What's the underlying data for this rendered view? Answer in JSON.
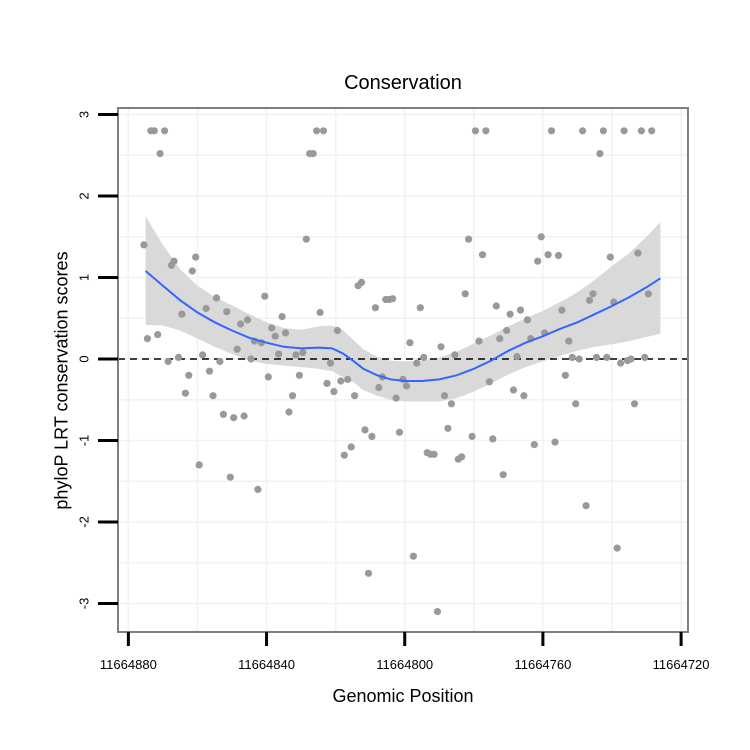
{
  "chart_data": {
    "type": "scatter",
    "title": "Conservation",
    "xlabel": "Genomic Position",
    "ylabel": "phyloP LRT conservation scores",
    "x_reversed": true,
    "xlim": [
      11664883,
      11664718
    ],
    "ylim": [
      -3.35,
      3.08
    ],
    "x_ticks": [
      11664880,
      11664840,
      11664800,
      11664760,
      11664720
    ],
    "x_tick_labels": [
      "11664880",
      "11664840",
      "11664800",
      "11664760",
      "11664720"
    ],
    "y_ticks": [
      -3,
      -2,
      -1,
      0,
      1,
      2,
      3
    ],
    "y_tick_labels": [
      "-3",
      "-2",
      "-1",
      "0",
      "1",
      "2",
      "3"
    ],
    "grid": true,
    "reference_line": {
      "y": 0,
      "style": "dashed"
    },
    "colors": {
      "points": "#999999",
      "smooth": "#3366ff",
      "ribbon": "#d9d9d9",
      "grid": "#f2f2f2",
      "border": "#7f7f7f"
    },
    "points": [
      [
        11664875.5,
        1.4
      ],
      [
        11664874.5,
        0.25
      ],
      [
        11664873.5,
        2.8
      ],
      [
        11664872.5,
        2.8
      ],
      [
        11664871.5,
        0.3
      ],
      [
        11664870.8,
        2.52
      ],
      [
        11664869.5,
        2.8
      ],
      [
        11664868.5,
        -0.03
      ],
      [
        11664867.5,
        1.15
      ],
      [
        11664866.8,
        1.2
      ],
      [
        11664865.5,
        0.02
      ],
      [
        11664864.5,
        0.55
      ],
      [
        11664863.5,
        -0.42
      ],
      [
        11664862.5,
        -0.2
      ],
      [
        11664861.5,
        1.08
      ],
      [
        11664860.5,
        1.25
      ],
      [
        11664859.5,
        -1.3
      ],
      [
        11664858.5,
        0.05
      ],
      [
        11664857.5,
        0.62
      ],
      [
        11664856.5,
        -0.15
      ],
      [
        11664855.5,
        -0.45
      ],
      [
        11664854.5,
        0.75
      ],
      [
        11664853.5,
        -0.03
      ],
      [
        11664852.5,
        -0.68
      ],
      [
        11664851.5,
        0.58
      ],
      [
        11664850.5,
        -1.45
      ],
      [
        11664849.5,
        -0.72
      ],
      [
        11664848.5,
        0.12
      ],
      [
        11664847.5,
        0.43
      ],
      [
        11664846.5,
        -0.7
      ],
      [
        11664845.5,
        0.48
      ],
      [
        11664844.5,
        0.0
      ],
      [
        11664843.5,
        0.22
      ],
      [
        11664842.5,
        -1.6
      ],
      [
        11664841.5,
        0.2
      ],
      [
        11664840.5,
        0.77
      ],
      [
        11664839.5,
        -0.22
      ],
      [
        11664838.5,
        0.38
      ],
      [
        11664837.5,
        0.28
      ],
      [
        11664836.5,
        0.06
      ],
      [
        11664835.5,
        0.52
      ],
      [
        11664834.5,
        0.32
      ],
      [
        11664833.5,
        -0.65
      ],
      [
        11664832.5,
        -0.45
      ],
      [
        11664831.5,
        0.05
      ],
      [
        11664830.5,
        -0.2
      ],
      [
        11664829.5,
        0.08
      ],
      [
        11664828.5,
        1.47
      ],
      [
        11664827.5,
        2.52
      ],
      [
        11664826.5,
        2.52
      ],
      [
        11664825.5,
        2.8
      ],
      [
        11664824.5,
        0.57
      ],
      [
        11664823.5,
        2.8
      ],
      [
        11664822.5,
        -0.3
      ],
      [
        11664821.5,
        -0.05
      ],
      [
        11664820.5,
        -0.4
      ],
      [
        11664819.5,
        0.35
      ],
      [
        11664818.5,
        -0.27
      ],
      [
        11664817.5,
        -1.18
      ],
      [
        11664816.5,
        -0.25
      ],
      [
        11664815.5,
        -1.08
      ],
      [
        11664814.5,
        -0.45
      ],
      [
        11664813.5,
        0.9
      ],
      [
        11664812.5,
        0.94
      ],
      [
        11664811.5,
        -0.87
      ],
      [
        11664810.5,
        -2.63
      ],
      [
        11664809.5,
        -0.95
      ],
      [
        11664808.5,
        0.63
      ],
      [
        11664807.5,
        -0.35
      ],
      [
        11664806.5,
        -0.22
      ],
      [
        11664805.5,
        0.73
      ],
      [
        11664804.5,
        0.73
      ],
      [
        11664803.5,
        0.74
      ],
      [
        11664802.5,
        -0.48
      ],
      [
        11664801.5,
        -0.9
      ],
      [
        11664800.5,
        -0.25
      ],
      [
        11664799.5,
        -0.33
      ],
      [
        11664798.5,
        0.2
      ],
      [
        11664797.5,
        -2.42
      ],
      [
        11664796.5,
        -0.05
      ],
      [
        11664795.5,
        0.63
      ],
      [
        11664794.5,
        0.02
      ],
      [
        11664793.5,
        -1.15
      ],
      [
        11664792.5,
        -1.17
      ],
      [
        11664791.5,
        -1.17
      ],
      [
        11664790.5,
        -3.1
      ],
      [
        11664789.5,
        0.15
      ],
      [
        11664788.5,
        -0.45
      ],
      [
        11664787.5,
        -0.85
      ],
      [
        11664786.5,
        -0.55
      ],
      [
        11664785.5,
        0.05
      ],
      [
        11664784.5,
        -1.23
      ],
      [
        11664783.5,
        -1.2
      ],
      [
        11664782.5,
        0.8
      ],
      [
        11664781.5,
        1.47
      ],
      [
        11664780.5,
        -0.95
      ],
      [
        11664779.5,
        2.8
      ],
      [
        11664778.5,
        0.22
      ],
      [
        11664777.5,
        1.28
      ],
      [
        11664776.5,
        2.8
      ],
      [
        11664775.5,
        -0.28
      ],
      [
        11664774.5,
        -0.98
      ],
      [
        11664773.5,
        0.65
      ],
      [
        11664772.5,
        0.25
      ],
      [
        11664771.5,
        -1.42
      ],
      [
        11664770.5,
        0.35
      ],
      [
        11664769.5,
        0.55
      ],
      [
        11664768.5,
        -0.38
      ],
      [
        11664767.5,
        0.03
      ],
      [
        11664766.5,
        0.6
      ],
      [
        11664765.5,
        -0.45
      ],
      [
        11664764.5,
        0.48
      ],
      [
        11664763.5,
        0.25
      ],
      [
        11664762.5,
        -1.05
      ],
      [
        11664761.5,
        1.2
      ],
      [
        11664760.5,
        1.5
      ],
      [
        11664759.5,
        0.32
      ],
      [
        11664758.5,
        1.28
      ],
      [
        11664757.5,
        2.8
      ],
      [
        11664756.5,
        -1.02
      ],
      [
        11664755.5,
        1.27
      ],
      [
        11664754.5,
        0.6
      ],
      [
        11664753.5,
        -0.2
      ],
      [
        11664752.5,
        0.22
      ],
      [
        11664751.5,
        0.02
      ],
      [
        11664750.5,
        -0.55
      ],
      [
        11664749.5,
        0.0
      ],
      [
        11664748.5,
        2.8
      ],
      [
        11664747.5,
        -1.8
      ],
      [
        11664746.5,
        0.72
      ],
      [
        11664745.5,
        0.8
      ],
      [
        11664744.5,
        0.02
      ],
      [
        11664743.5,
        2.52
      ],
      [
        11664742.5,
        2.8
      ],
      [
        11664741.5,
        0.02
      ],
      [
        11664740.5,
        1.25
      ],
      [
        11664739.5,
        0.7
      ],
      [
        11664738.5,
        -2.32
      ],
      [
        11664737.5,
        -0.05
      ],
      [
        11664736.5,
        2.8
      ],
      [
        11664735.5,
        -0.02
      ],
      [
        11664734.5,
        0.0
      ],
      [
        11664733.5,
        -0.55
      ],
      [
        11664732.5,
        1.3
      ],
      [
        11664731.5,
        2.8
      ],
      [
        11664730.5,
        0.02
      ],
      [
        11664729.5,
        0.8
      ],
      [
        11664728.5,
        2.8
      ]
    ],
    "smooth": [
      [
        11664875.0,
        1.08
      ],
      [
        11664870.0,
        0.9
      ],
      [
        11664865.0,
        0.72
      ],
      [
        11664860.0,
        0.57
      ],
      [
        11664855.0,
        0.45
      ],
      [
        11664850.0,
        0.35
      ],
      [
        11664845.0,
        0.26
      ],
      [
        11664840.0,
        0.2
      ],
      [
        11664835.0,
        0.15
      ],
      [
        11664830.0,
        0.13
      ],
      [
        11664825.0,
        0.14
      ],
      [
        11664821.0,
        0.13
      ],
      [
        11664818.0,
        0.07
      ],
      [
        11664815.0,
        -0.02
      ],
      [
        11664812.0,
        -0.12
      ],
      [
        11664808.0,
        -0.2
      ],
      [
        11664804.0,
        -0.25
      ],
      [
        11664800.0,
        -0.27
      ],
      [
        11664795.0,
        -0.27
      ],
      [
        11664790.0,
        -0.25
      ],
      [
        11664785.0,
        -0.2
      ],
      [
        11664780.0,
        -0.12
      ],
      [
        11664775.0,
        -0.02
      ],
      [
        11664770.0,
        0.1
      ],
      [
        11664765.0,
        0.2
      ],
      [
        11664760.0,
        0.28
      ],
      [
        11664755.0,
        0.37
      ],
      [
        11664750.0,
        0.45
      ],
      [
        11664745.0,
        0.55
      ],
      [
        11664740.0,
        0.65
      ],
      [
        11664735.0,
        0.76
      ],
      [
        11664730.0,
        0.88
      ],
      [
        11664726.0,
        0.99
      ]
    ],
    "ribbon_upper": [
      [
        11664875.0,
        1.75
      ],
      [
        11664870.0,
        1.4
      ],
      [
        11664865.0,
        1.1
      ],
      [
        11664860.0,
        0.9
      ],
      [
        11664855.0,
        0.76
      ],
      [
        11664850.0,
        0.66
      ],
      [
        11664845.0,
        0.55
      ],
      [
        11664840.0,
        0.45
      ],
      [
        11664835.0,
        0.38
      ],
      [
        11664830.0,
        0.36
      ],
      [
        11664825.0,
        0.4
      ],
      [
        11664821.0,
        0.41
      ],
      [
        11664818.0,
        0.36
      ],
      [
        11664815.0,
        0.24
      ],
      [
        11664812.0,
        0.12
      ],
      [
        11664808.0,
        0.03
      ],
      [
        11664804.0,
        -0.02
      ],
      [
        11664800.0,
        -0.03
      ],
      [
        11664795.0,
        -0.02
      ],
      [
        11664790.0,
        0.02
      ],
      [
        11664785.0,
        0.09
      ],
      [
        11664780.0,
        0.19
      ],
      [
        11664775.0,
        0.29
      ],
      [
        11664770.0,
        0.4
      ],
      [
        11664765.0,
        0.5
      ],
      [
        11664760.0,
        0.59
      ],
      [
        11664755.0,
        0.7
      ],
      [
        11664750.0,
        0.82
      ],
      [
        11664745.0,
        0.97
      ],
      [
        11664740.0,
        1.14
      ],
      [
        11664735.0,
        1.3
      ],
      [
        11664730.0,
        1.5
      ],
      [
        11664726.0,
        1.68
      ]
    ],
    "ribbon_lower": [
      [
        11664875.0,
        0.42
      ],
      [
        11664870.0,
        0.41
      ],
      [
        11664865.0,
        0.35
      ],
      [
        11664860.0,
        0.25
      ],
      [
        11664855.0,
        0.15
      ],
      [
        11664850.0,
        0.06
      ],
      [
        11664845.0,
        -0.02
      ],
      [
        11664840.0,
        -0.06
      ],
      [
        11664835.0,
        -0.08
      ],
      [
        11664830.0,
        -0.1
      ],
      [
        11664825.0,
        -0.12
      ],
      [
        11664821.0,
        -0.15
      ],
      [
        11664818.0,
        -0.22
      ],
      [
        11664815.0,
        -0.28
      ],
      [
        11664812.0,
        -0.38
      ],
      [
        11664808.0,
        -0.45
      ],
      [
        11664804.0,
        -0.5
      ],
      [
        11664800.0,
        -0.52
      ],
      [
        11664795.0,
        -0.52
      ],
      [
        11664790.0,
        -0.52
      ],
      [
        11664785.0,
        -0.48
      ],
      [
        11664780.0,
        -0.4
      ],
      [
        11664775.0,
        -0.3
      ],
      [
        11664770.0,
        -0.19
      ],
      [
        11664765.0,
        -0.1
      ],
      [
        11664760.0,
        -0.03
      ],
      [
        11664755.0,
        0.04
      ],
      [
        11664750.0,
        0.1
      ],
      [
        11664745.0,
        0.15
      ],
      [
        11664740.0,
        0.18
      ],
      [
        11664735.0,
        0.22
      ],
      [
        11664730.0,
        0.27
      ],
      [
        11664726.0,
        0.31
      ]
    ]
  }
}
